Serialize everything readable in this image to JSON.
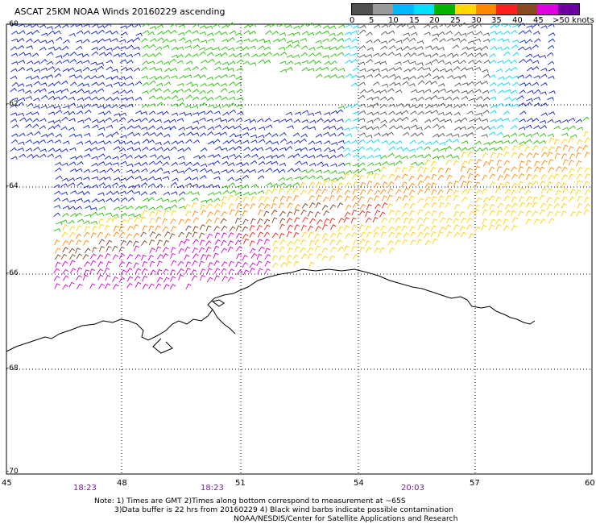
{
  "title": "ASCAT 25KM NOAA Winds 20160229 ascending",
  "legend": {
    "labels": [
      "0",
      "5",
      "10",
      "15",
      "20",
      "25",
      "30",
      "35",
      "40",
      "45",
      ">50 knots"
    ],
    "colors": [
      "#505050",
      "#9a9a9a",
      "#00b8ff",
      "#00e0ff",
      "#00b400",
      "#ffd800",
      "#ff8800",
      "#ff2020",
      "#8a4a20",
      "#e000e0",
      "#6a00a0"
    ]
  },
  "map": {
    "lon_ticks": [
      "45",
      "48",
      "51",
      "54",
      "57",
      "60"
    ],
    "lat_ticks": [
      "-60",
      "-62",
      "-64",
      "-66",
      "-68",
      "-70"
    ],
    "coast_color": "#000000",
    "grid": "dotted"
  },
  "pass_times": [
    "18:23",
    "18:23",
    "20:03"
  ],
  "notes": {
    "line1": "Note: 1) Times are GMT 2)Times along bottom correspond to measurement at ~65S",
    "line2": "3)Data buffer is 22 hrs from 20160229 4) Black wind barbs indicate possible contamination",
    "line3": "NOAA/NESDIS/Center for Satellite Applications and Research"
  }
}
